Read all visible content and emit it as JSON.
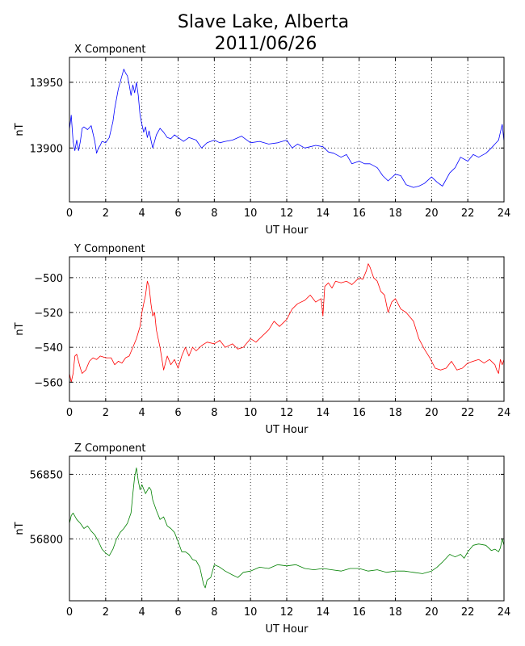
{
  "title_line1": "Slave Lake, Alberta",
  "title_line2": "2011/06/26",
  "chart_data": [
    {
      "type": "line",
      "title": "X Component",
      "xlabel": "UT Hour",
      "ylabel": "nT",
      "xlim": [
        0,
        24
      ],
      "ylim": [
        13859,
        13969
      ],
      "xticks": [
        0,
        2,
        4,
        6,
        8,
        10,
        12,
        14,
        16,
        18,
        20,
        22,
        24
      ],
      "yticks": [
        13900,
        13950
      ],
      "grid": true,
      "series": [
        {
          "color": "#0000ff",
          "x": [
            0.0,
            0.1,
            0.2,
            0.3,
            0.4,
            0.5,
            0.6,
            0.7,
            0.8,
            1.0,
            1.2,
            1.4,
            1.5,
            1.6,
            1.7,
            1.8,
            2.0,
            2.2,
            2.4,
            2.5,
            2.7,
            2.9,
            3.0,
            3.1,
            3.2,
            3.3,
            3.4,
            3.5,
            3.6,
            3.7,
            3.8,
            3.9,
            4.0,
            4.1,
            4.2,
            4.3,
            4.4,
            4.5,
            4.6,
            4.8,
            5.0,
            5.2,
            5.4,
            5.6,
            5.8,
            6.0,
            6.3,
            6.6,
            7.0,
            7.3,
            7.6,
            8.0,
            8.3,
            8.6,
            9.0,
            9.5,
            10.0,
            10.5,
            11.0,
            11.5,
            12.0,
            12.3,
            12.6,
            13.0,
            13.3,
            13.6,
            14.0,
            14.3,
            14.6,
            15.0,
            15.3,
            15.6,
            16.0,
            16.3,
            16.6,
            17.0,
            17.3,
            17.6,
            18.0,
            18.3,
            18.6,
            19.0,
            19.3,
            19.6,
            20.0,
            20.3,
            20.6,
            21.0,
            21.3,
            21.6,
            22.0,
            22.3,
            22.6,
            23.0,
            23.3,
            23.5,
            23.7,
            23.8,
            23.9,
            24.0
          ],
          "values": [
            13914,
            13925,
            13905,
            13898,
            13906,
            13898,
            13905,
            13915,
            13916,
            13914,
            13917,
            13905,
            13896,
            13900,
            13902,
            13905,
            13904,
            13908,
            13920,
            13930,
            13945,
            13955,
            13960,
            13957,
            13955,
            13948,
            13940,
            13948,
            13942,
            13950,
            13940,
            13925,
            13918,
            13912,
            13916,
            13908,
            13913,
            13906,
            13900,
            13910,
            13915,
            13912,
            13908,
            13907,
            13910,
            13908,
            13905,
            13908,
            13906,
            13900,
            13904,
            13906,
            13904,
            13905,
            13906,
            13909,
            13904,
            13905,
            13903,
            13904,
            13906,
            13900,
            13903,
            13900,
            13901,
            13902,
            13901,
            13897,
            13896,
            13893,
            13895,
            13888,
            13890,
            13888,
            13888,
            13885,
            13879,
            13875,
            13880,
            13879,
            13872,
            13870,
            13871,
            13873,
            13878,
            13874,
            13871,
            13881,
            13885,
            13893,
            13890,
            13895,
            13893,
            13896,
            13900,
            13903,
            13906,
            13912,
            13918,
            13905
          ]
        }
      ]
    },
    {
      "type": "line",
      "title": "Y Component",
      "xlabel": "UT Hour",
      "ylabel": "nT",
      "xlim": [
        0,
        24
      ],
      "ylim": [
        -571,
        -488
      ],
      "xticks": [
        0,
        2,
        4,
        6,
        8,
        10,
        12,
        14,
        16,
        18,
        20,
        22,
        24
      ],
      "yticks": [
        -500,
        -520,
        -540,
        -560
      ],
      "grid": true,
      "series": [
        {
          "color": "#ff0000",
          "x": [
            0.0,
            0.1,
            0.2,
            0.3,
            0.4,
            0.5,
            0.6,
            0.7,
            0.9,
            1.1,
            1.3,
            1.5,
            1.7,
            2.0,
            2.3,
            2.5,
            2.7,
            2.9,
            3.1,
            3.3,
            3.5,
            3.7,
            3.9,
            4.0,
            4.1,
            4.2,
            4.3,
            4.4,
            4.5,
            4.6,
            4.7,
            4.8,
            5.0,
            5.2,
            5.4,
            5.6,
            5.8,
            6.0,
            6.2,
            6.4,
            6.6,
            6.8,
            7.0,
            7.3,
            7.6,
            8.0,
            8.3,
            8.6,
            9.0,
            9.3,
            9.6,
            10.0,
            10.3,
            10.6,
            11.0,
            11.3,
            11.6,
            12.0,
            12.3,
            12.6,
            13.0,
            13.3,
            13.6,
            13.9,
            14.0,
            14.1,
            14.3,
            14.5,
            14.7,
            15.0,
            15.3,
            15.6,
            16.0,
            16.2,
            16.4,
            16.5,
            16.6,
            16.8,
            17.0,
            17.2,
            17.4,
            17.6,
            17.8,
            18.0,
            18.3,
            18.6,
            19.0,
            19.3,
            19.6,
            19.9,
            20.2,
            20.5,
            20.8,
            21.1,
            21.4,
            21.7,
            22.0,
            22.3,
            22.6,
            22.9,
            23.2,
            23.5,
            23.6,
            23.7,
            23.8,
            23.9,
            24.0
          ],
          "values": [
            -555,
            -560,
            -555,
            -545,
            -544,
            -548,
            -552,
            -555,
            -553,
            -548,
            -546,
            -547,
            -545,
            -546,
            -546,
            -550,
            -548,
            -549,
            -546,
            -545,
            -540,
            -535,
            -528,
            -520,
            -515,
            -510,
            -502,
            -505,
            -515,
            -522,
            -520,
            -530,
            -540,
            -553,
            -545,
            -550,
            -547,
            -552,
            -545,
            -540,
            -545,
            -540,
            -542,
            -539,
            -537,
            -538,
            -536,
            -540,
            -538,
            -541,
            -540,
            -535,
            -537,
            -534,
            -530,
            -525,
            -528,
            -524,
            -518,
            -515,
            -513,
            -510,
            -514,
            -512,
            -522,
            -505,
            -503,
            -506,
            -502,
            -503,
            -502,
            -504,
            -500,
            -501,
            -496,
            -492,
            -494,
            -500,
            -502,
            -508,
            -510,
            -520,
            -514,
            -512,
            -518,
            -520,
            -525,
            -535,
            -541,
            -546,
            -552,
            -553,
            -552,
            -548,
            -553,
            -552,
            -549,
            -548,
            -547,
            -549,
            -547,
            -550,
            -553,
            -555,
            -547,
            -550,
            -547
          ]
        }
      ]
    },
    {
      "type": "line",
      "title": "Z Component",
      "xlabel": "UT Hour",
      "ylabel": "nT",
      "xlim": [
        0,
        24
      ],
      "ylim": [
        56752,
        56864
      ],
      "xticks": [
        0,
        2,
        4,
        6,
        8,
        10,
        12,
        14,
        16,
        18,
        20,
        22,
        24
      ],
      "yticks": [
        56800,
        56850
      ],
      "grid": true,
      "series": [
        {
          "color": "#008000",
          "x": [
            0.0,
            0.1,
            0.2,
            0.4,
            0.6,
            0.8,
            1.0,
            1.2,
            1.4,
            1.6,
            1.8,
            2.0,
            2.2,
            2.4,
            2.6,
            2.8,
            3.0,
            3.2,
            3.4,
            3.5,
            3.6,
            3.7,
            3.8,
            3.9,
            4.0,
            4.2,
            4.4,
            4.5,
            4.6,
            4.8,
            5.0,
            5.2,
            5.4,
            5.6,
            5.8,
            6.0,
            6.2,
            6.4,
            6.6,
            6.8,
            7.0,
            7.2,
            7.4,
            7.5,
            7.6,
            7.8,
            8.0,
            8.3,
            8.6,
            9.0,
            9.3,
            9.6,
            10.0,
            10.5,
            11.0,
            11.5,
            12.0,
            12.5,
            13.0,
            13.5,
            14.0,
            14.5,
            15.0,
            15.5,
            16.0,
            16.5,
            17.0,
            17.5,
            18.0,
            18.5,
            19.0,
            19.5,
            20.0,
            20.3,
            20.6,
            21.0,
            21.3,
            21.6,
            21.8,
            22.0,
            22.3,
            22.6,
            23.0,
            23.3,
            23.5,
            23.7,
            23.8,
            23.9,
            24.0
          ],
          "values": [
            56812,
            56818,
            56820,
            56815,
            56812,
            56808,
            56810,
            56806,
            56803,
            56798,
            56792,
            56789,
            56787,
            56792,
            56800,
            56805,
            56808,
            56812,
            56820,
            56835,
            56848,
            56855,
            56845,
            56838,
            56842,
            56835,
            56840,
            56838,
            56830,
            56822,
            56815,
            56817,
            56810,
            56808,
            56805,
            56798,
            56790,
            56790,
            56788,
            56784,
            56783,
            56778,
            56765,
            56762,
            56768,
            56770,
            56780,
            56778,
            56775,
            56772,
            56770,
            56774,
            56775,
            56778,
            56777,
            56780,
            56779,
            56780,
            56777,
            56776,
            56777,
            56776,
            56775,
            56777,
            56777,
            56775,
            56776,
            56774,
            56775,
            56775,
            56774,
            56773,
            56775,
            56778,
            56782,
            56788,
            56786,
            56788,
            56785,
            56790,
            56795,
            56796,
            56795,
            56791,
            56792,
            56790,
            56793,
            56800,
            56795
          ]
        }
      ]
    }
  ]
}
